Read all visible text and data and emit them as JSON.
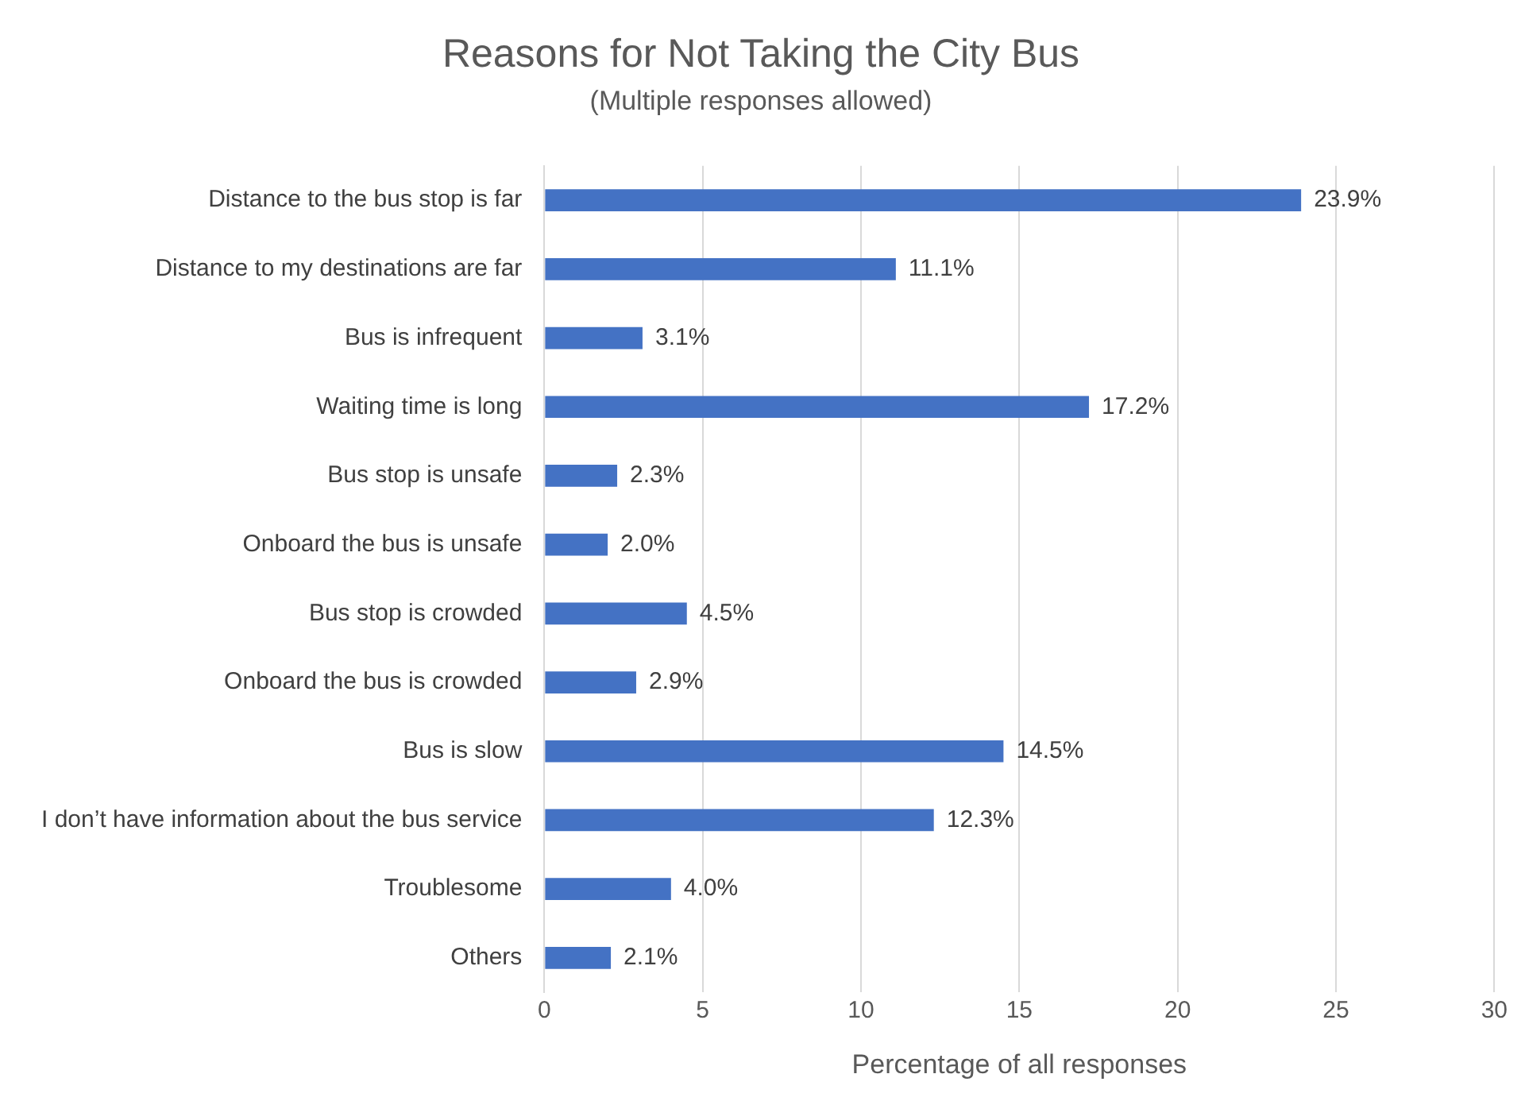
{
  "chart_data": {
    "type": "bar",
    "orientation": "horizontal",
    "title": "Reasons for Not Taking the City Bus",
    "subtitle": "(Multiple responses allowed)",
    "xlabel": "Percentage of all responses",
    "categories": [
      "Distance to the bus stop is far",
      "Distance to my destinations are far",
      "Bus is infrequent",
      "Waiting time is long",
      "Bus stop is unsafe",
      "Onboard the bus is unsafe",
      "Bus stop is crowded",
      "Onboard the bus is crowded",
      "Bus is slow",
      "I don’t have information about the bus service",
      "Troublesome",
      "Others"
    ],
    "values": [
      23.9,
      11.1,
      3.1,
      17.2,
      2.3,
      2.0,
      4.5,
      2.9,
      14.5,
      12.3,
      4.0,
      2.1
    ],
    "value_labels": [
      "23.9%",
      "11.1%",
      "3.1%",
      "17.2%",
      "2.3%",
      "2.0%",
      "4.5%",
      "2.9%",
      "14.5%",
      "12.3%",
      "4.0%",
      "2.1%"
    ],
    "color": "#4472c4",
    "xlim": [
      0,
      30
    ],
    "xticks": [
      0,
      5,
      10,
      15,
      20,
      25,
      30
    ],
    "grid": "x",
    "legend": false
  }
}
